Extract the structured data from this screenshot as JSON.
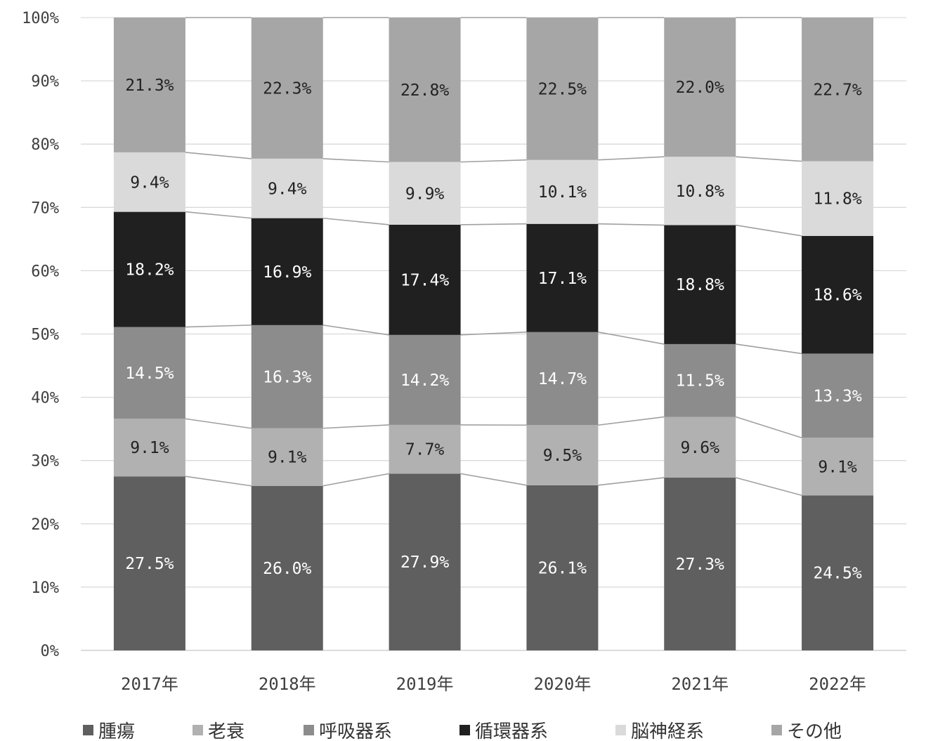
{
  "chart_data": {
    "type": "bar",
    "stacked": true,
    "percent_stacked": true,
    "categories": [
      "2017年",
      "2018年",
      "2019年",
      "2020年",
      "2021年",
      "2022年"
    ],
    "series": [
      {
        "name": "腫瘍",
        "values": [
          27.5,
          26.0,
          27.9,
          26.1,
          27.3,
          24.5
        ],
        "labels": [
          "27.5%",
          "26.0%",
          "27.9%",
          "26.1%",
          "27.3%",
          "24.5%"
        ]
      },
      {
        "name": "老衰",
        "values": [
          9.1,
          9.1,
          7.7,
          9.5,
          9.6,
          9.1
        ],
        "labels": [
          "9.1%",
          "9.1%",
          "7.7%",
          "9.5%",
          "9.6%",
          "9.1%"
        ]
      },
      {
        "name": "呼吸器系",
        "values": [
          14.5,
          16.3,
          14.2,
          14.7,
          11.5,
          13.3
        ],
        "labels": [
          "14.5%",
          "16.3%",
          "14.2%",
          "14.7%",
          "11.5%",
          "13.3%"
        ]
      },
      {
        "name": "循環器系",
        "values": [
          18.2,
          16.9,
          17.4,
          17.1,
          18.8,
          18.6
        ],
        "labels": [
          "18.2%",
          "16.9%",
          "17.4%",
          "17.1%",
          "18.8%",
          "18.6%"
        ]
      },
      {
        "name": "脳神経系",
        "values": [
          9.4,
          9.4,
          9.9,
          10.1,
          10.8,
          11.8
        ],
        "labels": [
          "9.4%",
          "9.4%",
          "9.9%",
          "10.1%",
          "10.8%",
          "11.8%"
        ]
      },
      {
        "name": "その他",
        "values": [
          21.3,
          22.3,
          22.8,
          22.5,
          22.0,
          22.7
        ],
        "labels": [
          "21.3%",
          "22.3%",
          "22.8%",
          "22.5%",
          "22.0%",
          "22.7%"
        ]
      }
    ],
    "colors": [
      "#5f5f5f",
      "#b1b1b1",
      "#8c8c8c",
      "#202020",
      "#dadada",
      "#a6a6a6"
    ],
    "label_colors": [
      "#ffffff",
      "#222222",
      "#ffffff",
      "#ffffff",
      "#222222",
      "#222222"
    ],
    "y_ticks": [
      "0%",
      "10%",
      "20%",
      "30%",
      "40%",
      "50%",
      "60%",
      "70%",
      "80%",
      "90%",
      "100%"
    ],
    "ylim": [
      0,
      100
    ],
    "grid": true,
    "series_lines": true,
    "legend_position": "bottom",
    "title": "",
    "xlabel": "",
    "ylabel": ""
  }
}
